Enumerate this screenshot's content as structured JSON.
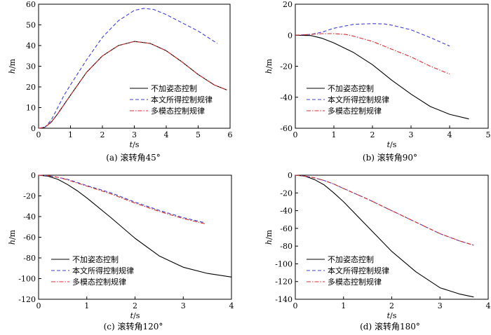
{
  "chart_data": [
    {
      "type": "line",
      "caption": "(a) 滚转角45°",
      "xlabel": "t/s",
      "ylabel": "h/m",
      "xlim": [
        0,
        6
      ],
      "ylim": [
        0,
        60
      ],
      "xticks": [
        0,
        1,
        2,
        3,
        4,
        5,
        6
      ],
      "yticks": [
        0,
        10,
        20,
        30,
        40,
        50,
        60
      ],
      "legend_position": "bottom-right",
      "series": [
        {
          "name": "不加姿态控制",
          "color": "#000000",
          "dash": "solid",
          "x": [
            0.0,
            0.2,
            0.4,
            0.6,
            0.8,
            1.0,
            1.5,
            2.0,
            2.5,
            3.0,
            3.5,
            4.0,
            4.5,
            5.0,
            5.5,
            5.9
          ],
          "y": [
            0,
            0.5,
            3,
            7,
            11.5,
            16,
            27,
            35,
            40,
            42,
            41,
            37.5,
            32,
            26,
            21,
            18.5
          ]
        },
        {
          "name": "本文所得控制规律",
          "color": "#3f3fd0",
          "dash": "5,3",
          "x": [
            0.0,
            0.2,
            0.4,
            0.6,
            0.8,
            1.0,
            1.5,
            2.0,
            2.5,
            3.0,
            3.3,
            3.6,
            4.0,
            4.5,
            5.0,
            5.6
          ],
          "y": [
            0,
            0.5,
            4,
            10,
            16,
            21,
            33,
            44,
            52,
            57,
            58,
            57.5,
            55,
            51,
            47,
            41
          ]
        },
        {
          "name": "多模态控制规律",
          "color": "#d03030",
          "dash": "6,2,1.5,2",
          "x": [
            0.0,
            0.2,
            0.4,
            0.6,
            0.8,
            1.0,
            1.5,
            2.0,
            2.5,
            3.0,
            3.5,
            4.0,
            4.5,
            5.0,
            5.5,
            5.9
          ],
          "y": [
            0,
            0.5,
            3,
            7,
            11.5,
            16,
            27,
            35,
            40,
            42,
            41,
            37.5,
            32,
            26,
            21,
            18.5
          ]
        }
      ]
    },
    {
      "type": "line",
      "caption": "(b) 滚转角90°",
      "xlabel": "t/s",
      "ylabel": "h/m",
      "xlim": [
        0,
        5
      ],
      "ylim": [
        -60,
        20
      ],
      "xticks": [
        0,
        1,
        2,
        3,
        4,
        5
      ],
      "yticks": [
        -60,
        -40,
        -20,
        0,
        20
      ],
      "legend_position": "bottom-left",
      "series": [
        {
          "name": "不加姿态控制",
          "color": "#000000",
          "dash": "solid",
          "x": [
            0.0,
            0.4,
            0.7,
            1.0,
            1.5,
            2.0,
            2.5,
            3.0,
            3.5,
            4.0,
            4.5
          ],
          "y": [
            0,
            -0.2,
            -2,
            -5,
            -11,
            -19,
            -29,
            -38,
            -46,
            -51,
            -54
          ]
        },
        {
          "name": "本文所得控制规律",
          "color": "#3f3fd0",
          "dash": "5,3",
          "x": [
            0.0,
            0.4,
            0.7,
            1.0,
            1.5,
            2.0,
            2.3,
            2.5,
            3.0,
            3.5,
            4.0
          ],
          "y": [
            0,
            0.5,
            2,
            4.5,
            7,
            7.5,
            7.3,
            6.5,
            3.5,
            -1.5,
            -7
          ]
        },
        {
          "name": "多模态控制规律",
          "color": "#d03030",
          "dash": "6,2,1.5,2",
          "x": [
            0.0,
            0.4,
            0.7,
            1.0,
            1.3,
            1.5,
            2.0,
            2.5,
            3.0,
            3.5,
            4.0
          ],
          "y": [
            0,
            0.5,
            1,
            1,
            0.5,
            -0.5,
            -4,
            -9,
            -14,
            -20,
            -25
          ]
        }
      ]
    },
    {
      "type": "line",
      "caption": "(c) 滚转角120°",
      "xlabel": "t/s",
      "ylabel": "h/m",
      "xlim": [
        0,
        4
      ],
      "ylim": [
        -120,
        0
      ],
      "xticks": [
        0,
        1,
        2,
        3,
        4
      ],
      "yticks": [
        -120,
        -100,
        -80,
        -60,
        -40,
        -20,
        0
      ],
      "legend_position": "bottom-left",
      "series": [
        {
          "name": "不加姿态控制",
          "color": "#000000",
          "dash": "solid",
          "x": [
            0.0,
            0.2,
            0.4,
            0.6,
            0.8,
            1.0,
            1.5,
            2.0,
            2.5,
            3.0,
            3.5,
            4.0
          ],
          "y": [
            0,
            -1,
            -4,
            -9,
            -15,
            -22,
            -41,
            -61,
            -78,
            -89,
            -95,
            -98.5
          ]
        },
        {
          "name": "本文所得控制规律",
          "color": "#3f3fd0",
          "dash": "5,3",
          "x": [
            0.0,
            0.2,
            0.4,
            0.6,
            0.8,
            1.0,
            1.5,
            2.0,
            2.5,
            3.0,
            3.45
          ],
          "y": [
            0,
            -0.5,
            -2,
            -4,
            -7,
            -10,
            -17,
            -26,
            -34,
            -41,
            -46
          ]
        },
        {
          "name": "多模态控制规律",
          "color": "#d03030",
          "dash": "6,2,1.5,2",
          "x": [
            0.0,
            0.2,
            0.4,
            0.6,
            0.8,
            1.0,
            1.5,
            2.0,
            2.5,
            3.0,
            3.45
          ],
          "y": [
            0,
            -0.5,
            -2,
            -4.5,
            -7.5,
            -10.5,
            -18,
            -27,
            -35,
            -42,
            -47
          ]
        }
      ]
    },
    {
      "type": "line",
      "caption": "(d) 滚转角180°",
      "xlabel": "t/s",
      "ylabel": "h/m",
      "xlim": [
        0,
        4
      ],
      "ylim": [
        -140,
        0
      ],
      "xticks": [
        0,
        1,
        2,
        3,
        4
      ],
      "yticks": [
        -140,
        -120,
        -100,
        -80,
        -60,
        -40,
        -20,
        0
      ],
      "legend_position": "bottom-left",
      "series": [
        {
          "name": "不加姿态控制",
          "color": "#000000",
          "dash": "solid",
          "x": [
            0.0,
            0.2,
            0.4,
            0.6,
            0.8,
            1.0,
            1.5,
            2.0,
            2.5,
            3.0,
            3.4,
            3.7
          ],
          "y": [
            0,
            -1,
            -5,
            -11,
            -20,
            -30,
            -58,
            -86,
            -109,
            -127,
            -134,
            -137.5
          ]
        },
        {
          "name": "本文所得控制规律",
          "color": "#3f3fd0",
          "dash": "5,3",
          "x": [
            0.0,
            0.2,
            0.4,
            0.6,
            0.8,
            1.0,
            1.5,
            2.0,
            2.5,
            3.0,
            3.4,
            3.7
          ],
          "y": [
            0,
            -1,
            -3,
            -6,
            -10,
            -15,
            -27,
            -40,
            -53,
            -66,
            -74,
            -79
          ]
        },
        {
          "name": "多模态控制规律",
          "color": "#d03030",
          "dash": "6,2,1.5,2",
          "x": [
            0.0,
            0.2,
            0.4,
            0.6,
            0.8,
            1.0,
            1.5,
            2.0,
            2.5,
            3.0,
            3.4,
            3.7
          ],
          "y": [
            0,
            -1,
            -3,
            -6,
            -10,
            -15,
            -27,
            -40,
            -53,
            -66,
            -74,
            -79
          ]
        }
      ]
    }
  ]
}
